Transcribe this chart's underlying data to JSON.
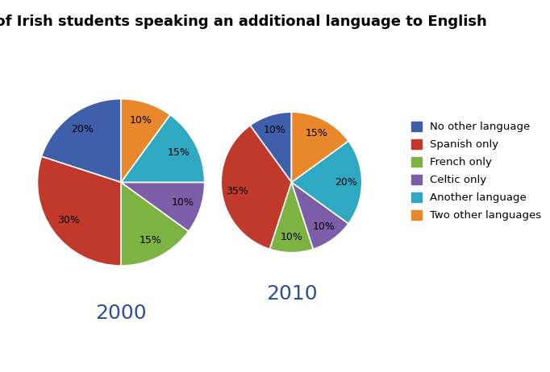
{
  "title": "% of Irish students speaking an additional language to English",
  "title_fontsize": 13,
  "labels": [
    "No other language",
    "Spanish only",
    "French only",
    "Celtic only",
    "Another language",
    "Two other languages"
  ],
  "colors": [
    "#3f5faa",
    "#c0392b",
    "#7cb342",
    "#7b5ea7",
    "#2fa8c2",
    "#e8872b"
  ],
  "year2000": [
    20,
    30,
    15,
    10,
    15,
    10
  ],
  "year2010": [
    10,
    35,
    10,
    10,
    20,
    15
  ],
  "year2000_label": "2000",
  "year2010_label": "2010",
  "year_label_fontsize": 18,
  "year_label_color": "#2e4fa0",
  "pct_fontsize": 9,
  "legend_fontsize": 9.5,
  "background_color": "#ffffff",
  "startangle_2000": 90,
  "startangle_2010": 90
}
